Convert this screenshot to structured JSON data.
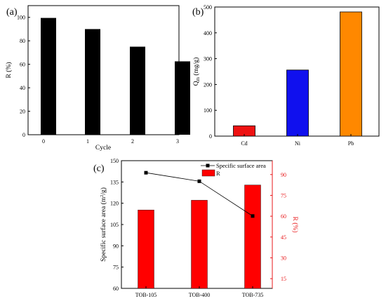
{
  "chart_data": [
    {
      "panel": "(a)",
      "type": "bar",
      "categories": [
        "0",
        "1",
        "2",
        "3"
      ],
      "values": [
        99.5,
        90,
        75,
        62.5
      ],
      "xlabel": "Cycle",
      "ylabel": "R (%)",
      "ylim": [
        0,
        110
      ],
      "yticks": [
        0,
        20,
        40,
        60,
        80,
        100
      ],
      "colors": [
        "#000000"
      ],
      "grid": false
    },
    {
      "panel": "(b)",
      "type": "bar",
      "categories": [
        "Cd",
        "Ni",
        "Pb"
      ],
      "values": [
        40,
        256,
        481
      ],
      "ylabel": "Q_m (mg/g)",
      "ylim": [
        0,
        500
      ],
      "yticks": [
        0,
        100,
        200,
        300,
        400,
        500
      ],
      "colors": [
        "#ee1111",
        "#1010ee",
        "#ff8800"
      ],
      "grid": false
    },
    {
      "panel": "(c)",
      "type": "bar+line",
      "categories": [
        "TOB-105",
        "TOB-400",
        "TOB-735"
      ],
      "series": [
        {
          "name": "Specific surface area",
          "kind": "line",
          "axis": "left",
          "values": [
            141.5,
            135.5,
            111
          ],
          "color": "#000000"
        },
        {
          "name": "R",
          "kind": "bar",
          "axis": "right",
          "values": [
            64.5,
            71.5,
            82.5
          ],
          "color": "#ff0000"
        }
      ],
      "ylabel": "Specific surface area (m²/g)",
      "ylim": [
        60,
        150
      ],
      "yticks": [
        60,
        75,
        90,
        105,
        120,
        135,
        150
      ],
      "y2label": "R (%)",
      "y2lim": [
        8,
        100
      ],
      "y2ticks": [
        15,
        30,
        45,
        60,
        75,
        90
      ],
      "legend": "top-right",
      "grid": false
    }
  ]
}
